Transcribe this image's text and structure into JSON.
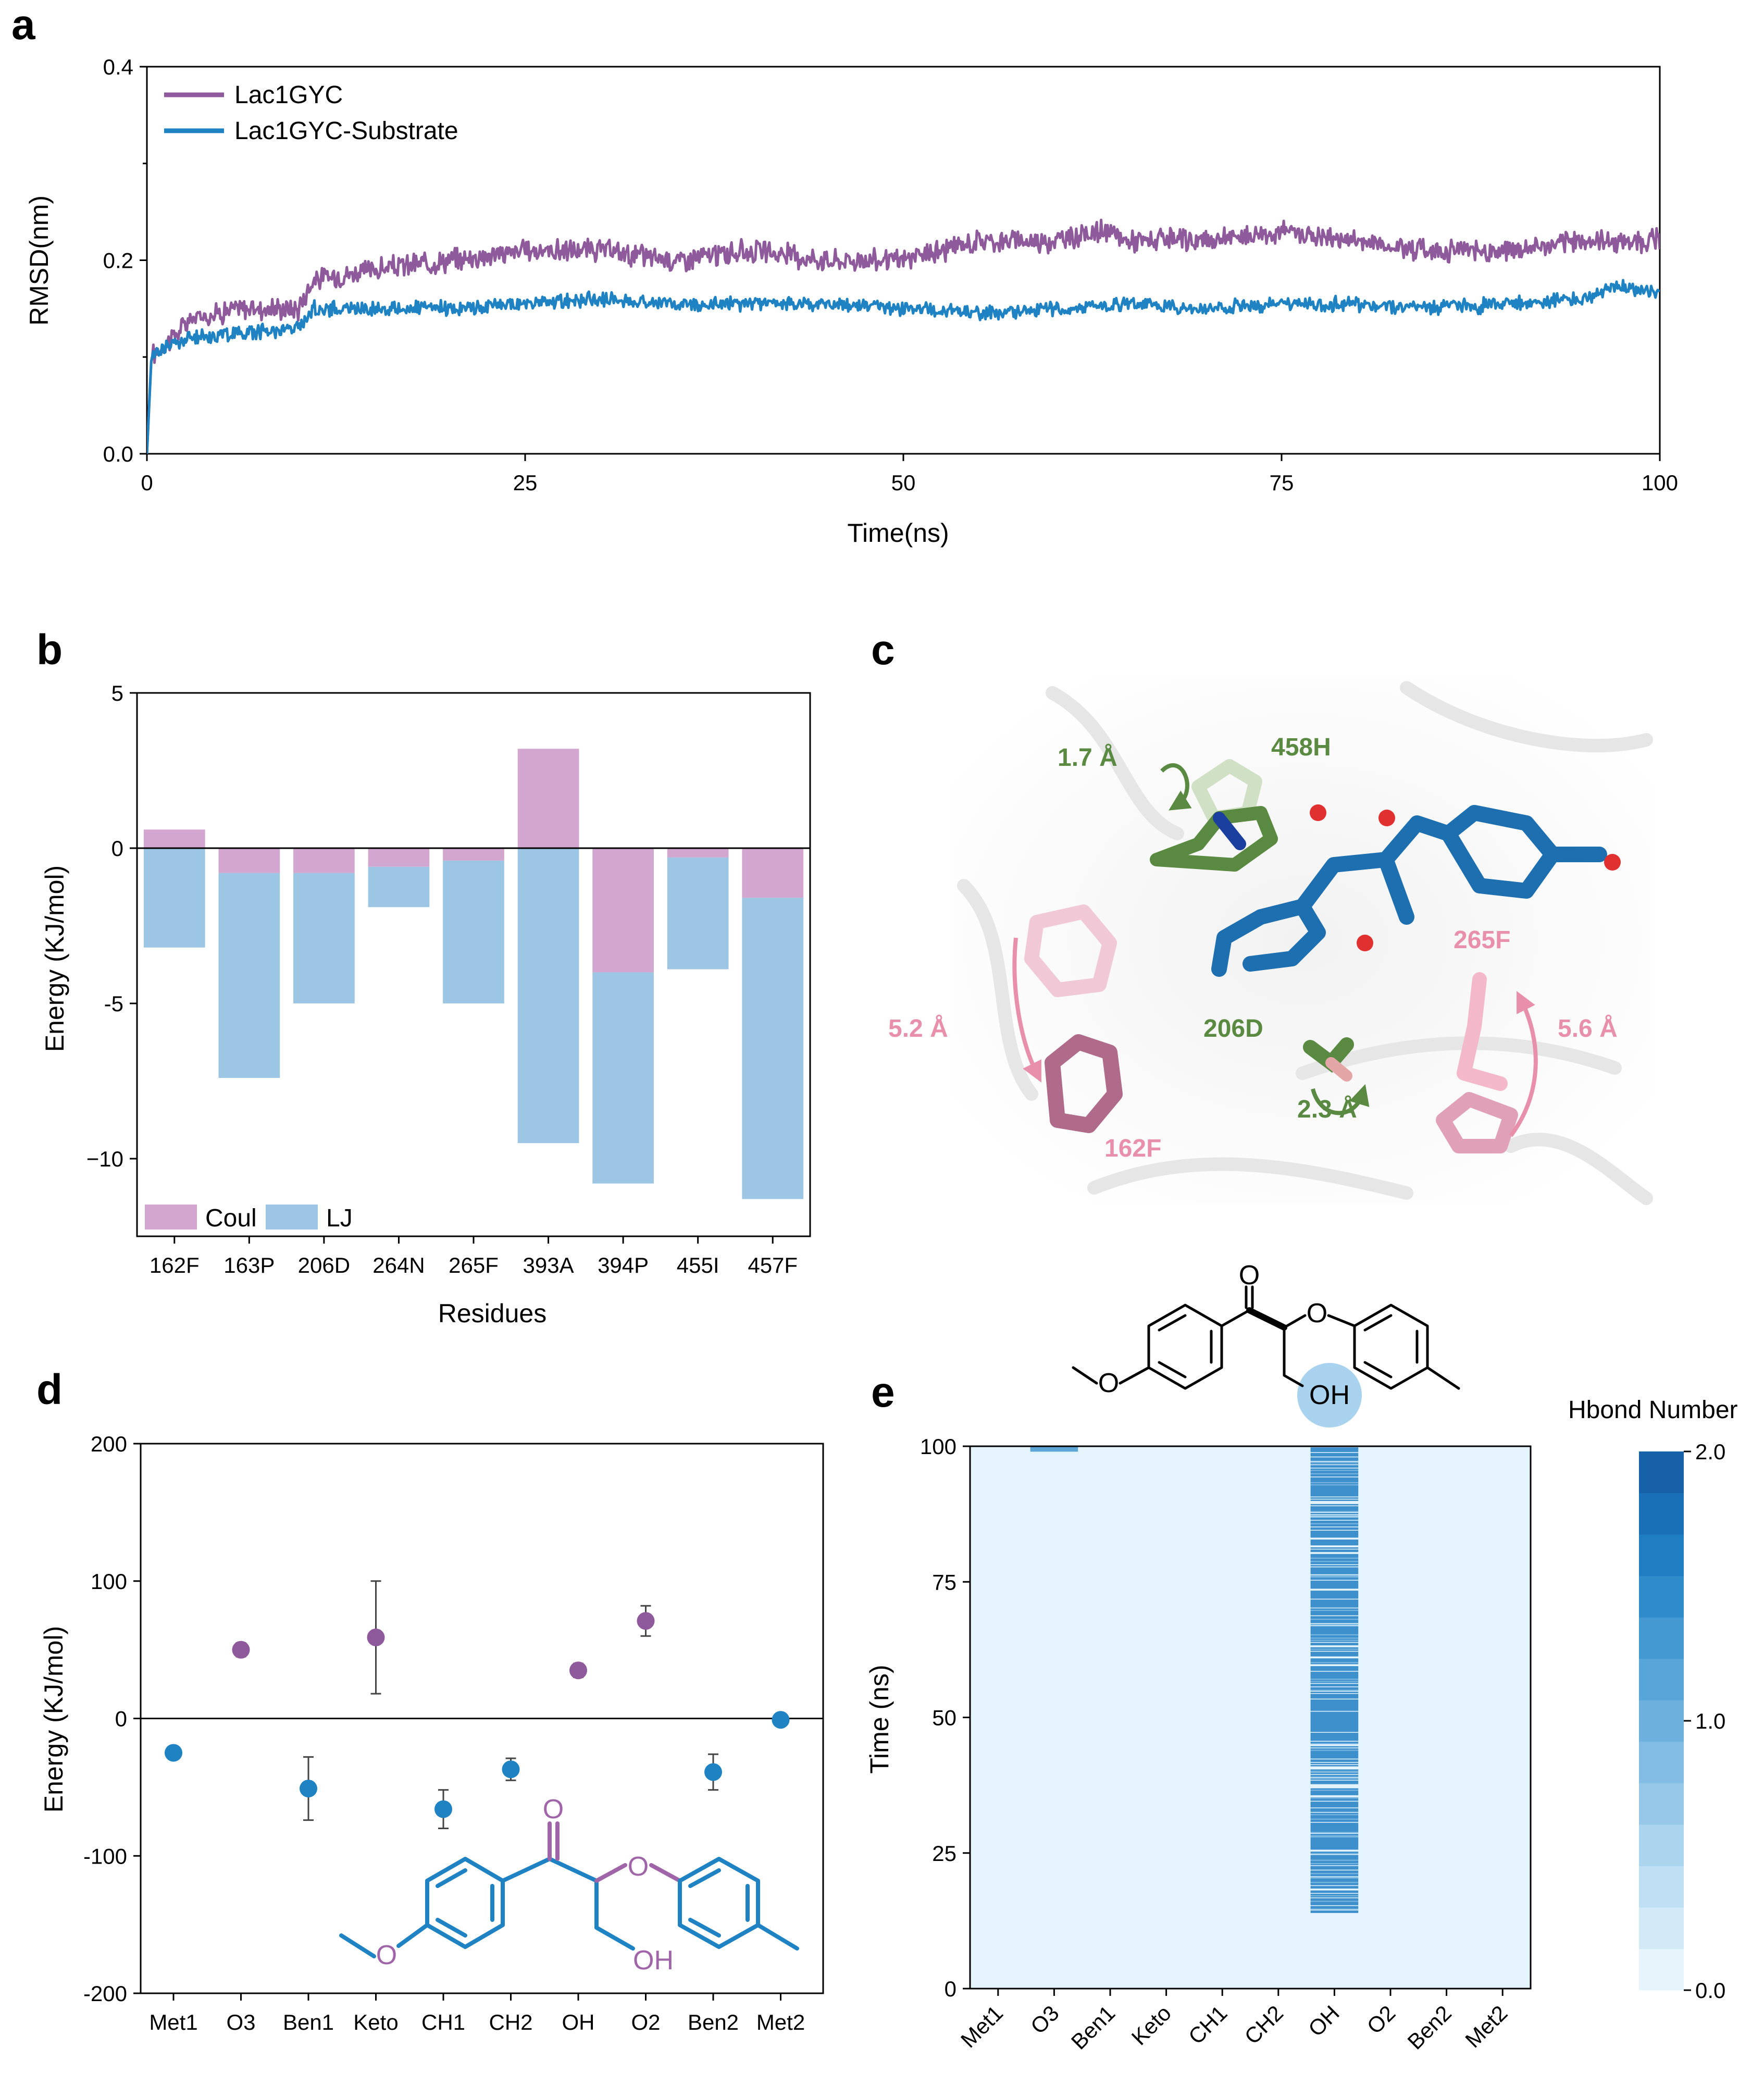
{
  "panels": {
    "a": "a",
    "b": "b",
    "c": "c",
    "d": "d",
    "e": "e"
  },
  "colors": {
    "lac": "#8e5a9b",
    "sub": "#1f82c3",
    "coul": "#d3a6cf",
    "lj": "#9dc6e4",
    "green": "#5a8a42",
    "pink": "#e88fac",
    "blue": "#1d6fb0"
  },
  "chart_data": [
    {
      "id": "a",
      "type": "line",
      "xlabel": "Time(ns)",
      "ylabel": "RMSD(nm)",
      "xlim": [
        0,
        100
      ],
      "ylim": [
        0,
        0.4
      ],
      "xticks": [
        "0",
        "25",
        "50",
        "75",
        "100"
      ],
      "yticks": [
        "0.0",
        "0.2",
        "0.4"
      ],
      "legend": "top-left",
      "series": [
        {
          "name": "Lac1GYC",
          "x": [
            0,
            0.3,
            1,
            3,
            6,
            10,
            11,
            15,
            20,
            25,
            30,
            35,
            40,
            45,
            50,
            55,
            60,
            63,
            65,
            70,
            75,
            80,
            85,
            90,
            95,
            100
          ],
          "y": [
            0.0,
            0.1,
            0.11,
            0.14,
            0.15,
            0.15,
            0.18,
            0.19,
            0.2,
            0.21,
            0.21,
            0.2,
            0.21,
            0.2,
            0.2,
            0.22,
            0.22,
            0.23,
            0.22,
            0.22,
            0.23,
            0.22,
            0.21,
            0.21,
            0.22,
            0.22
          ]
        },
        {
          "name": "Lac1GYC-Substrate",
          "x": [
            0,
            0.3,
            1,
            3,
            6,
            10,
            11,
            15,
            20,
            25,
            30,
            35,
            40,
            45,
            50,
            55,
            60,
            65,
            70,
            75,
            80,
            85,
            90,
            95,
            97,
            100
          ],
          "y": [
            0.0,
            0.1,
            0.11,
            0.12,
            0.125,
            0.13,
            0.15,
            0.15,
            0.15,
            0.155,
            0.16,
            0.155,
            0.155,
            0.155,
            0.15,
            0.145,
            0.15,
            0.155,
            0.15,
            0.155,
            0.155,
            0.15,
            0.155,
            0.16,
            0.175,
            0.165
          ]
        }
      ]
    },
    {
      "id": "b",
      "type": "bar",
      "xlabel": "Residues",
      "ylabel": "Energy (KJ/mol)",
      "ylim": [
        -12.5,
        5
      ],
      "yticks": [
        "5",
        "0",
        "-5",
        "−10"
      ],
      "categories": [
        "162F",
        "163P",
        "206D",
        "264N",
        "265F",
        "393A",
        "394P",
        "455I",
        "457F"
      ],
      "series": [
        {
          "name": "Coul",
          "values": [
            0.6,
            -0.8,
            -0.8,
            -0.6,
            -0.4,
            3.2,
            -4.0,
            -0.3,
            -1.6
          ]
        },
        {
          "name": "LJ",
          "values": [
            -3.2,
            -6.6,
            -4.2,
            -1.3,
            -4.6,
            -9.5,
            -6.8,
            -3.6,
            -9.7
          ]
        }
      ]
    },
    {
      "id": "d",
      "type": "scatter",
      "ylabel": "Energy (KJ/mol)",
      "ylim": [
        -200,
        200
      ],
      "yticks": [
        "200",
        "100",
        "0",
        "-100",
        "-200"
      ],
      "categories": [
        "Met1",
        "O3",
        "Ben1",
        "Keto",
        "CH1",
        "CH2",
        "OH",
        "O2",
        "Ben2",
        "Met2"
      ],
      "series": [
        {
          "name": "positive",
          "points": [
            {
              "i": 1,
              "y": 50,
              "err": 5
            },
            {
              "i": 3,
              "y": 59,
              "err": 41
            },
            {
              "i": 6,
              "y": 35,
              "err": 5
            },
            {
              "i": 7,
              "y": 71,
              "err": 11
            }
          ]
        },
        {
          "name": "negative",
          "points": [
            {
              "i": 0,
              "y": -25,
              "err": 3
            },
            {
              "i": 2,
              "y": -51,
              "err": 23
            },
            {
              "i": 4,
              "y": -66,
              "err": 14
            },
            {
              "i": 5,
              "y": -37,
              "err": 8
            },
            {
              "i": 8,
              "y": -39,
              "err": 13
            },
            {
              "i": 9,
              "y": -1,
              "err": 3
            }
          ]
        }
      ]
    },
    {
      "id": "e",
      "type": "heatmap",
      "ylabel": "Time (ns)",
      "ylim": [
        0,
        100
      ],
      "yticks": [
        "0",
        "25",
        "50",
        "75",
        "100"
      ],
      "categories": [
        "Met1",
        "O3",
        "Ben1",
        "Keto",
        "CH1",
        "CH2",
        "OH",
        "O2",
        "Ben2",
        "Met2"
      ],
      "active_column": "OH",
      "active_range_ns": [
        14,
        100
      ],
      "o3_band_ns": [
        99,
        100
      ],
      "colorbar_title": "Hbond Number",
      "colorbar_ticks": [
        "2.0",
        "1.0",
        "0.0"
      ],
      "colorbar_range": [
        0,
        2
      ]
    }
  ],
  "panel_c": {
    "labels": {
      "r458": "458H",
      "d17": "1.7 Å",
      "r265": "265F",
      "d52": "5.2 Å",
      "r206": "206D",
      "d56": "5.6 Å",
      "d23": "2.3 Å",
      "r162": "162F"
    }
  },
  "chem": {
    "O": "O",
    "OH": "OH"
  }
}
